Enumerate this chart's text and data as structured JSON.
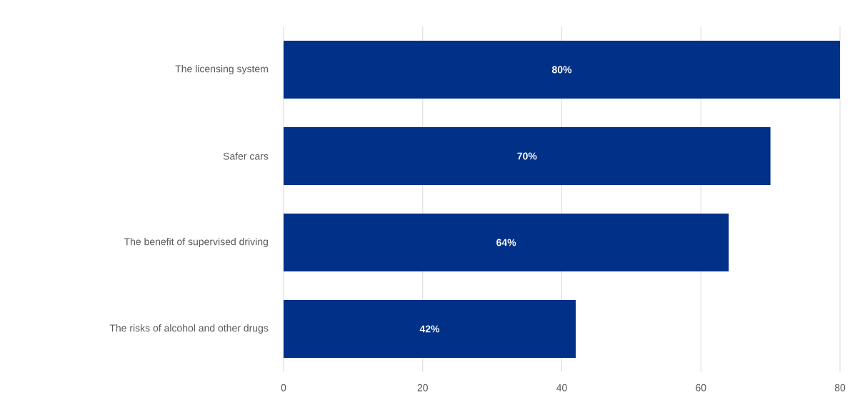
{
  "chart_data": {
    "type": "bar",
    "orientation": "horizontal",
    "categories": [
      "The licensing system",
      "Safer cars",
      "The benefit of supervised driving",
      "The risks of alcohol and other drugs"
    ],
    "values": [
      80,
      70,
      64,
      42
    ],
    "value_labels": [
      "80%",
      "70%",
      "64%",
      "42%"
    ],
    "color": "#003087",
    "xlim": [
      0,
      80
    ],
    "xticks": [
      0,
      20,
      40,
      60,
      80
    ],
    "grid": "x"
  }
}
